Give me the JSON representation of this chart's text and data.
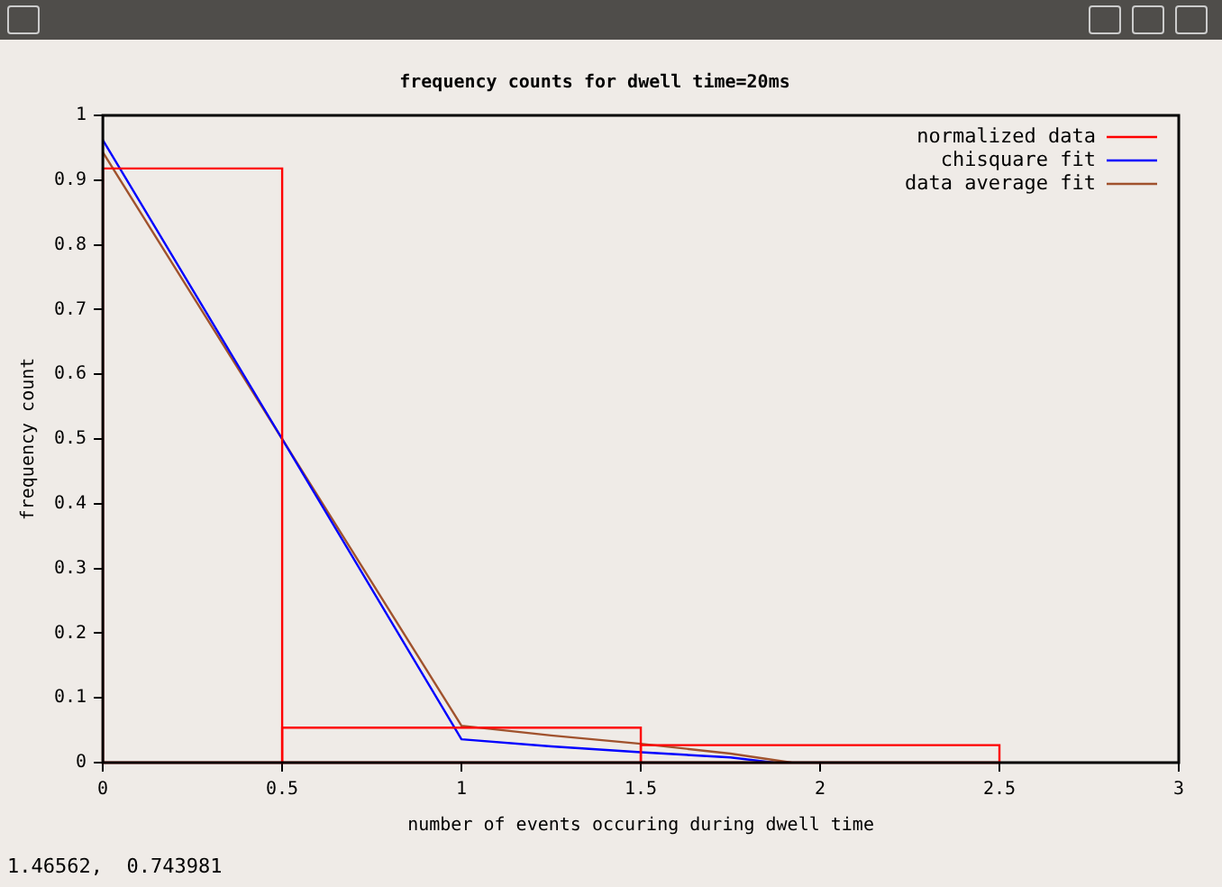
{
  "chart_data": {
    "type": "line",
    "title": "frequency counts for dwell time=20ms",
    "xlabel": "number of events occuring during dwell time",
    "ylabel": "frequency count",
    "xlim": [
      0,
      3
    ],
    "xticks": [
      {
        "value": 0,
        "label": "0"
      },
      {
        "value": 0.5,
        "label": "0.5"
      },
      {
        "value": 1,
        "label": "1"
      },
      {
        "value": 1.5,
        "label": "1.5"
      },
      {
        "value": 2,
        "label": "2"
      },
      {
        "value": 2.5,
        "label": "2.5"
      },
      {
        "value": 3,
        "label": "3"
      }
    ],
    "ylim": [
      0,
      1
    ],
    "yticks": [
      0,
      {
        "value": 0.1,
        "label": "0.1"
      },
      {
        "value": 0.2,
        "label": "0.2"
      },
      {
        "value": 0.3,
        "label": "0.3"
      },
      {
        "value": 0.4,
        "label": "0.4"
      },
      {
        "value": 0.5,
        "label": "0.5"
      },
      {
        "value": 0.6,
        "label": "0.6"
      },
      {
        "value": 0.7,
        "label": "0.7"
      },
      {
        "value": 0.8,
        "label": "0.8"
      },
      {
        "value": 0.9,
        "label": "0.9"
      },
      1
    ],
    "grid": false,
    "legend": "top right",
    "marker": "none",
    "line_style": "solid",
    "series": [
      {
        "name": "normalized data",
        "type": "histogram",
        "color": "#ff0000",
        "bins": [
          0,
          0.5,
          1.5,
          2.5
        ],
        "values": [
          0.918,
          0.054,
          0.027
        ]
      },
      {
        "name": "chisquare fit",
        "color": "#0000ff",
        "x": [
          0,
          0.5,
          1,
          1.25,
          1.5,
          1.75,
          1.87
        ],
        "values": [
          0.962,
          0.5,
          0.036,
          0.025,
          0.016,
          0.008,
          0
        ]
      },
      {
        "name": "data average fit",
        "color": "#a0522d",
        "x": [
          0,
          0.5,
          1,
          1.25,
          1.5,
          1.75,
          1.92
        ],
        "values": [
          0.943,
          0.5,
          0.057,
          0.042,
          0.029,
          0.014,
          0
        ]
      }
    ],
    "annotations": [
      "1.46562,  0.743981"
    ]
  }
}
